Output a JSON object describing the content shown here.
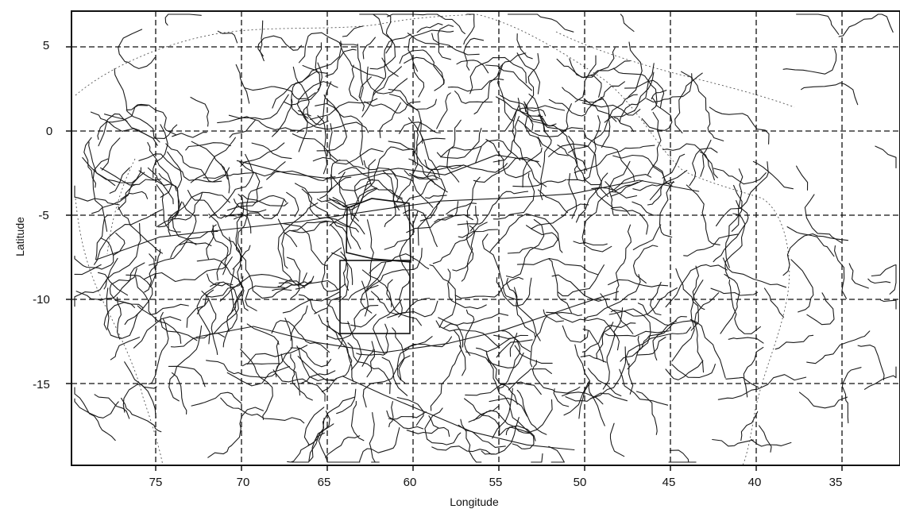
{
  "axes": {
    "x_label": "Longitude",
    "y_label": "Latitude",
    "x_ticks": [
      "75",
      "70",
      "65",
      "60",
      "55",
      "50",
      "45",
      "40",
      "35"
    ],
    "y_ticks": [
      "5",
      "0",
      "-5",
      "-10",
      "-15"
    ]
  },
  "chart_data": {
    "type": "map",
    "xlabel": "Longitude",
    "ylabel": "Latitude",
    "x_ticks": [
      75,
      70,
      65,
      60,
      55,
      50,
      45,
      40,
      35
    ],
    "y_ticks": [
      5,
      0,
      -5,
      -10,
      -15
    ],
    "grid": true,
    "grid_style": "dashed"
  }
}
